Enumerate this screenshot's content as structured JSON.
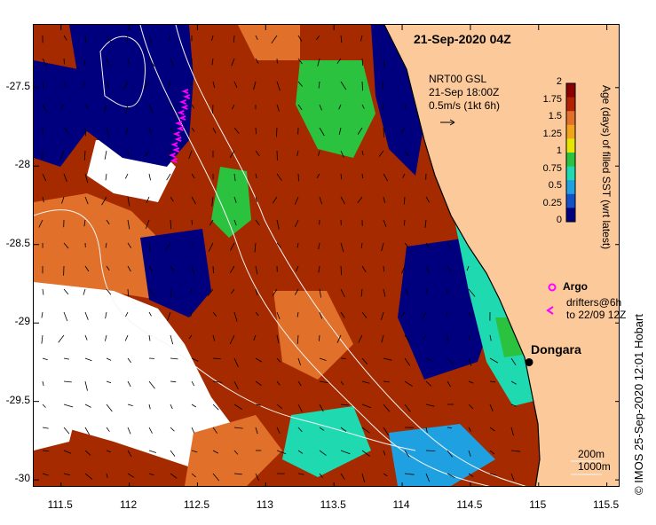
{
  "title": "21-Sep-2020 04Z",
  "reference": {
    "product": "NRT00 GSL",
    "time": "21-Sep 18:00Z",
    "vector_scale": "0.5m/s (1kt 6h)"
  },
  "colorbar": {
    "label": "Age (days) of filled SST (wrt latest)",
    "ticks": [
      "2",
      "1.75",
      "1.5",
      "1.25",
      "1",
      "0.75",
      "0.5",
      "0.25",
      "0"
    ],
    "colors": [
      "#8b0000",
      "#b22200",
      "#e0702a",
      "#f3a41d",
      "#e6e600",
      "#2bc23f",
      "#1fd9b0",
      "#1fa0e0",
      "#1450c8",
      "#00007f"
    ]
  },
  "axes": {
    "x_ticks": [
      "111.5",
      "112",
      "112.5",
      "113",
      "113.5",
      "114",
      "114.5",
      "115",
      "115.5"
    ],
    "y_ticks": [
      "-27.5",
      "-28",
      "-28.5",
      "-29",
      "-29.5",
      "-30"
    ],
    "xlim": [
      111.3,
      115.6
    ],
    "ylim": [
      -30.05,
      -27.1
    ]
  },
  "legend": {
    "argo": "Argo",
    "drifters_line1": "drifters@6h",
    "drifters_line2": "to 22/09 12Z",
    "argo_color": "#ff00ff"
  },
  "place": {
    "name": "Dongara",
    "lon": 114.93,
    "lat": -29.25
  },
  "isobaths": {
    "label1": "200m",
    "label2": "1000m"
  },
  "credit": "© IMOS 25-Sep-2020 12:01 Hobart",
  "land_color": "#fcc99b"
}
